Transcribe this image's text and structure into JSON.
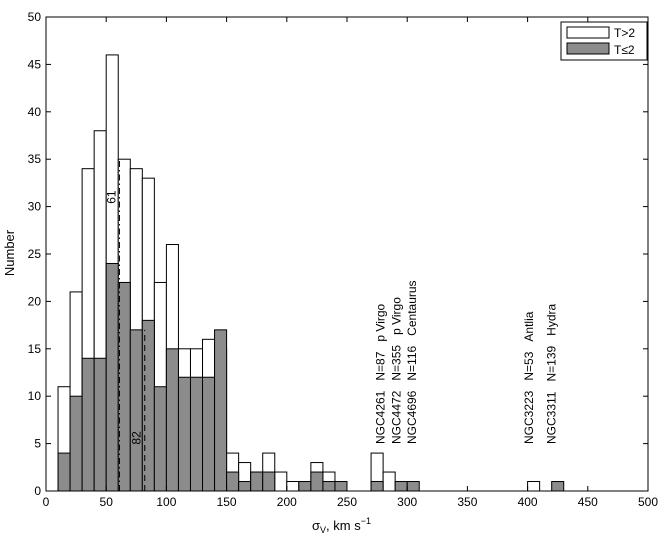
{
  "chart_data": {
    "type": "histogram",
    "xlabel_main": "σ",
    "xlabel_sub": "V",
    "xlabel_rest": ", km s",
    "xlabel_exp": "−1",
    "ylabel": "Number",
    "xlim": [
      0,
      500
    ],
    "ylim": [
      0,
      50
    ],
    "bin_width": 10,
    "x_ticks": [
      "0",
      "50",
      "100",
      "150",
      "200",
      "250",
      "300",
      "350",
      "400",
      "450",
      "500"
    ],
    "y_ticks": [
      "0",
      "5",
      "10",
      "15",
      "20",
      "25",
      "30",
      "35",
      "40",
      "45",
      "50"
    ],
    "legend_position": "top-right",
    "series": [
      {
        "name": "T>2",
        "fill": "#ffffff",
        "bins": [
          {
            "x0": 10,
            "count": 11
          },
          {
            "x0": 20,
            "count": 21
          },
          {
            "x0": 30,
            "count": 34
          },
          {
            "x0": 40,
            "count": 38
          },
          {
            "x0": 50,
            "count": 46
          },
          {
            "x0": 60,
            "count": 35
          },
          {
            "x0": 70,
            "count": 34
          },
          {
            "x0": 80,
            "count": 33
          },
          {
            "x0": 90,
            "count": 22
          },
          {
            "x0": 100,
            "count": 26
          },
          {
            "x0": 110,
            "count": 15
          },
          {
            "x0": 120,
            "count": 15
          },
          {
            "x0": 130,
            "count": 16
          },
          {
            "x0": 140,
            "count": 15
          },
          {
            "x0": 150,
            "count": 4
          },
          {
            "x0": 160,
            "count": 3
          },
          {
            "x0": 170,
            "count": 2
          },
          {
            "x0": 180,
            "count": 4
          },
          {
            "x0": 190,
            "count": 2
          },
          {
            "x0": 200,
            "count": 1
          },
          {
            "x0": 210,
            "count": 1
          },
          {
            "x0": 220,
            "count": 3
          },
          {
            "x0": 230,
            "count": 2
          },
          {
            "x0": 270,
            "count": 4
          },
          {
            "x0": 280,
            "count": 2
          },
          {
            "x0": 400,
            "count": 1
          }
        ]
      },
      {
        "name": "T≤2",
        "fill": "#8c8c8c",
        "bins": [
          {
            "x0": 10,
            "count": 4
          },
          {
            "x0": 20,
            "count": 10
          },
          {
            "x0": 30,
            "count": 14
          },
          {
            "x0": 40,
            "count": 14
          },
          {
            "x0": 50,
            "count": 24
          },
          {
            "x0": 60,
            "count": 22
          },
          {
            "x0": 70,
            "count": 17
          },
          {
            "x0": 80,
            "count": 18
          },
          {
            "x0": 90,
            "count": 11
          },
          {
            "x0": 100,
            "count": 15
          },
          {
            "x0": 110,
            "count": 12
          },
          {
            "x0": 120,
            "count": 12
          },
          {
            "x0": 130,
            "count": 12
          },
          {
            "x0": 140,
            "count": 17
          },
          {
            "x0": 150,
            "count": 2
          },
          {
            "x0": 160,
            "count": 1
          },
          {
            "x0": 170,
            "count": 2
          },
          {
            "x0": 180,
            "count": 2
          },
          {
            "x0": 190,
            "count": 0
          },
          {
            "x0": 200,
            "count": 0
          },
          {
            "x0": 210,
            "count": 1
          },
          {
            "x0": 220,
            "count": 2
          },
          {
            "x0": 230,
            "count": 1
          },
          {
            "x0": 240,
            "count": 1
          },
          {
            "x0": 270,
            "count": 1
          },
          {
            "x0": 290,
            "count": 1
          },
          {
            "x0": 300,
            "count": 1
          },
          {
            "x0": 420,
            "count": 1
          }
        ]
      }
    ],
    "reference_lines": [
      {
        "x": 61,
        "y_top": 35,
        "style": "dash-dot",
        "label": "61",
        "label_y": 31
      },
      {
        "x": 82,
        "y_top": 17,
        "style": "dashed",
        "label": "82",
        "label_y": 5.6
      }
    ],
    "annotations": [
      {
        "x": 278,
        "lines": [
          "NGC4261",
          "N=87",
          "p Virgo"
        ]
      },
      {
        "x": 291,
        "lines": [
          "NGC4472",
          "N=355",
          "p Virgo"
        ]
      },
      {
        "x": 304,
        "lines": [
          "NGC4696",
          "N=116",
          "Centaurus"
        ]
      },
      {
        "x": 401,
        "lines": [
          "NGC3223",
          "N=53",
          "Antlia"
        ]
      },
      {
        "x": 420,
        "lines": [
          "NGC3311",
          "N=139",
          "Hydra"
        ]
      }
    ]
  }
}
